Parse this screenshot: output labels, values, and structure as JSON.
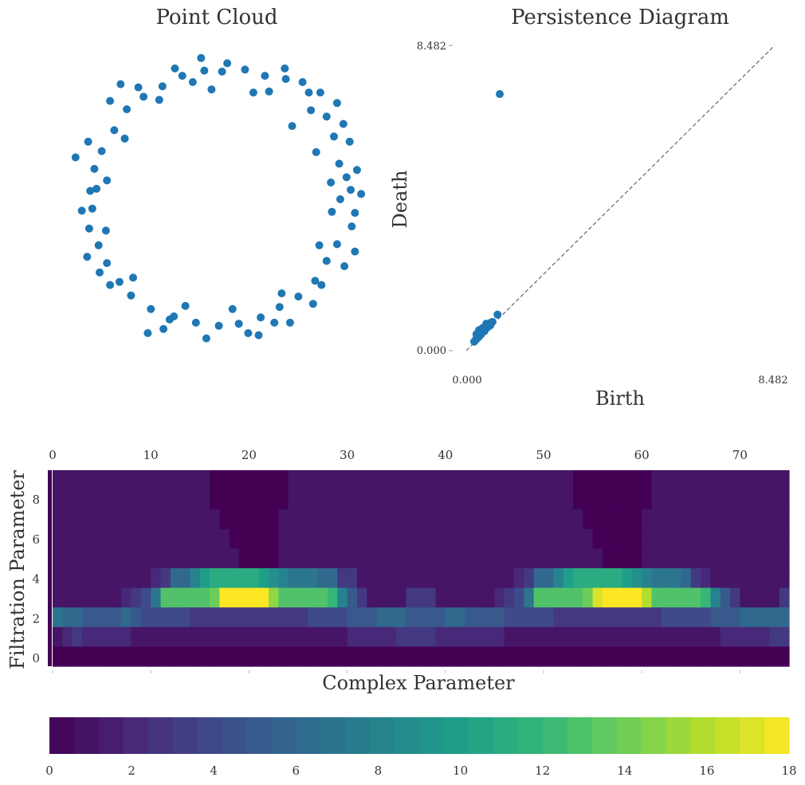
{
  "chart_data": [
    {
      "type": "scatter",
      "title": "Point Cloud",
      "xlabel": "",
      "ylabel": "",
      "xlim": [
        -1.6,
        1.6
      ],
      "ylim": [
        -1.6,
        1.6
      ],
      "grid": false,
      "color": "#1f77b4",
      "series": [
        {
          "points": [
            [
              1.18,
              0.0
            ],
            [
              1.32,
              -0.13
            ],
            [
              1.24,
              0.21
            ],
            [
              1.17,
              0.34
            ],
            [
              1.27,
              0.55
            ],
            [
              1.12,
              0.6
            ],
            [
              1.05,
              0.79
            ],
            [
              0.9,
              0.85
            ],
            [
              0.99,
              1.02
            ],
            [
              0.82,
              1.12
            ],
            [
              0.66,
              1.15
            ],
            [
              0.46,
              1.18
            ],
            [
              0.27,
              1.24
            ],
            [
              0.05,
              1.22
            ],
            [
              -0.12,
              1.23
            ],
            [
              -0.33,
              1.18
            ],
            [
              -0.52,
              1.08
            ],
            [
              -0.7,
              0.98
            ],
            [
              -0.86,
              0.86
            ],
            [
              -0.98,
              0.66
            ],
            [
              -1.1,
              0.46
            ],
            [
              -1.17,
              0.29
            ],
            [
              -1.21,
              0.08
            ],
            [
              -1.19,
              -0.09
            ],
            [
              -1.22,
              -0.28
            ],
            [
              -1.13,
              -0.44
            ],
            [
              -1.05,
              -0.61
            ],
            [
              -0.93,
              -0.79
            ],
            [
              -0.82,
              -0.92
            ],
            [
              -0.63,
              -1.05
            ],
            [
              -0.41,
              -1.12
            ],
            [
              -0.2,
              -1.18
            ],
            [
              0.02,
              -1.21
            ],
            [
              0.21,
              -1.19
            ],
            [
              0.42,
              -1.13
            ],
            [
              0.6,
              -1.03
            ],
            [
              0.78,
              -0.93
            ],
            [
              0.94,
              -0.78
            ],
            [
              1.05,
              -0.59
            ],
            [
              1.15,
              -0.43
            ],
            [
              1.29,
              -0.26
            ],
            [
              1.28,
              0.09
            ],
            [
              1.34,
              0.28
            ],
            [
              1.21,
              0.72
            ],
            [
              0.5,
              1.03
            ],
            [
              -0.23,
              1.12
            ],
            [
              -0.75,
              1.07
            ],
            [
              -1.23,
              0.55
            ],
            [
              -1.29,
              -0.11
            ],
            [
              -1.02,
              -0.82
            ],
            [
              -0.51,
              -1.24
            ],
            [
              0.3,
              -1.28
            ],
            [
              0.92,
              -1.0
            ],
            [
              1.22,
              -0.64
            ],
            [
              0.65,
              1.25
            ],
            [
              -0.4,
              1.25
            ],
            [
              -1.02,
              0.94
            ],
            [
              -1.12,
              -0.7
            ],
            [
              -0.1,
              -1.33
            ],
            [
              0.7,
              -1.18
            ],
            [
              1.09,
              0.16
            ],
            [
              1.1,
              -0.12
            ],
            [
              0.95,
              0.45
            ],
            [
              0.72,
              0.7
            ],
            [
              0.35,
              1.02
            ],
            [
              -0.05,
              1.05
            ],
            [
              -0.55,
              0.95
            ],
            [
              -0.88,
              0.58
            ],
            [
              -1.05,
              0.18
            ],
            [
              -1.06,
              -0.3
            ],
            [
              -0.8,
              -0.75
            ],
            [
              -0.3,
              -1.02
            ],
            [
              0.15,
              -1.05
            ],
            [
              0.62,
              -0.9
            ],
            [
              0.98,
              -0.44
            ],
            [
              1.38,
              0.05
            ],
            [
              -1.35,
              0.4
            ],
            [
              0.4,
              -1.3
            ],
            [
              -0.66,
              -1.28
            ],
            [
              1.32,
              -0.5
            ],
            [
              -0.15,
              1.35
            ],
            [
              0.88,
              1.02
            ],
            [
              -0.92,
              1.1
            ],
            [
              1.0,
              -0.82
            ],
            [
              -1.24,
              -0.55
            ],
            [
              0.1,
              1.3
            ],
            [
              1.15,
              0.92
            ],
            [
              -0.45,
              -1.15
            ],
            [
              0.55,
              -1.18
            ],
            [
              -1.15,
              0.1
            ]
          ]
        }
      ]
    },
    {
      "type": "scatter",
      "title": "Persistence Diagram",
      "xlabel": "Birth",
      "ylabel": "Death",
      "xlim": [
        0.0,
        8.482
      ],
      "ylim": [
        0.0,
        8.482
      ],
      "xtick_labels": [
        "0.000",
        "8.482"
      ],
      "ytick_labels": [
        "0.000",
        "8.482"
      ],
      "diagonal": "y = x (dashed)",
      "color": "#1f77b4",
      "series": [
        {
          "points": [
            [
              0.92,
              7.13
            ],
            [
              0.86,
              1.0
            ],
            [
              0.72,
              0.8
            ],
            [
              0.66,
              0.7
            ],
            [
              0.6,
              0.66
            ],
            [
              0.55,
              0.62
            ],
            [
              0.5,
              0.54
            ],
            [
              0.46,
              0.52
            ],
            [
              0.42,
              0.47
            ],
            [
              0.38,
              0.42
            ],
            [
              0.34,
              0.38
            ],
            [
              0.3,
              0.34
            ],
            [
              0.26,
              0.3
            ],
            [
              0.22,
              0.25
            ],
            [
              0.55,
              0.75
            ],
            [
              0.45,
              0.63
            ],
            [
              0.35,
              0.57
            ],
            [
              0.28,
              0.46
            ],
            [
              0.62,
              0.7
            ],
            [
              0.48,
              0.58
            ],
            [
              0.4,
              0.5
            ],
            [
              0.33,
              0.45
            ],
            [
              0.29,
              0.38
            ],
            [
              0.57,
              0.65
            ],
            [
              0.68,
              0.78
            ]
          ]
        }
      ]
    },
    {
      "type": "heatmap",
      "title": "",
      "xlabel": "Complex Parameter",
      "ylabel": "Filtration Parameter",
      "x_ticks": [
        0,
        10,
        20,
        30,
        40,
        50,
        60,
        70
      ],
      "y_ticks": [
        0,
        2,
        4,
        6,
        8
      ],
      "x_range": [
        0,
        75
      ],
      "n_cols": 75,
      "n_rows": 10,
      "row_heights": [
        1,
        1,
        1,
        1,
        1,
        1,
        1,
        1,
        2
      ],
      "colormap": "viridis",
      "colorbar_range": [
        0,
        18
      ],
      "colorbar_ticks": [
        0,
        2,
        4,
        6,
        8,
        10,
        12,
        14,
        16,
        18
      ],
      "rows_top_to_bottom": [
        [
          1,
          1,
          1,
          1,
          1,
          1,
          1,
          1,
          1,
          1,
          1,
          1,
          1,
          1,
          1,
          1,
          0,
          0,
          0,
          0,
          0,
          0,
          0,
          0,
          1,
          1,
          1,
          1,
          1,
          1,
          1,
          1,
          1,
          1,
          1,
          1,
          1,
          1,
          1,
          1,
          1,
          1,
          1,
          1,
          1,
          1,
          1,
          1,
          1,
          1,
          1,
          1,
          1,
          0,
          0,
          0,
          0,
          0,
          0,
          0,
          0,
          1,
          1,
          1,
          1,
          1,
          1,
          1,
          1,
          1,
          1,
          1,
          1,
          1,
          1
        ],
        [
          1,
          1,
          1,
          1,
          1,
          1,
          1,
          1,
          1,
          1,
          1,
          1,
          1,
          1,
          1,
          1,
          1,
          0,
          0,
          0,
          0,
          0,
          0,
          1,
          1,
          1,
          1,
          1,
          1,
          1,
          1,
          1,
          1,
          1,
          1,
          1,
          1,
          1,
          1,
          1,
          1,
          1,
          1,
          1,
          1,
          1,
          1,
          1,
          1,
          1,
          1,
          1,
          1,
          1,
          0,
          0,
          0,
          0,
          0,
          0,
          1,
          1,
          1,
          1,
          1,
          1,
          1,
          1,
          1,
          1,
          1,
          1,
          1,
          1,
          1
        ],
        [
          1,
          1,
          1,
          1,
          1,
          1,
          1,
          1,
          1,
          1,
          1,
          1,
          1,
          1,
          1,
          1,
          1,
          1,
          0,
          0,
          0,
          0,
          0,
          1,
          1,
          1,
          1,
          1,
          1,
          1,
          1,
          1,
          1,
          1,
          1,
          1,
          1,
          1,
          1,
          1,
          1,
          1,
          1,
          1,
          1,
          1,
          1,
          1,
          1,
          1,
          1,
          1,
          1,
          1,
          1,
          0,
          0,
          0,
          0,
          0,
          1,
          1,
          1,
          1,
          1,
          1,
          1,
          1,
          1,
          1,
          1,
          1,
          1,
          1,
          1
        ],
        [
          1,
          1,
          1,
          1,
          1,
          1,
          1,
          1,
          1,
          1,
          1,
          1,
          1,
          1,
          1,
          1,
          1,
          1,
          1,
          0,
          0,
          0,
          0,
          1,
          1,
          1,
          1,
          1,
          1,
          1,
          1,
          1,
          1,
          1,
          1,
          1,
          1,
          1,
          1,
          1,
          1,
          1,
          1,
          1,
          1,
          1,
          1,
          1,
          1,
          1,
          1,
          1,
          1,
          1,
          1,
          1,
          0,
          0,
          0,
          0,
          1,
          1,
          1,
          1,
          1,
          1,
          1,
          1,
          1,
          1,
          1,
          1,
          1,
          1,
          1
        ],
        [
          1,
          1,
          1,
          1,
          1,
          1,
          1,
          1,
          1,
          1,
          2,
          3,
          6,
          6,
          8,
          10,
          11,
          11,
          11,
          11,
          11,
          10,
          9,
          8,
          7,
          7,
          7,
          6,
          6,
          3,
          3,
          1,
          1,
          1,
          1,
          1,
          1,
          1,
          1,
          1,
          1,
          1,
          1,
          1,
          1,
          1,
          1,
          2,
          3,
          6,
          6,
          8,
          10,
          11,
          11,
          11,
          11,
          11,
          10,
          9,
          8,
          7,
          7,
          7,
          6,
          3,
          2,
          1,
          1,
          1,
          1,
          1,
          1,
          1,
          1
        ],
        [
          1,
          1,
          1,
          1,
          1,
          1,
          1,
          2,
          3,
          4,
          7,
          13,
          13,
          13,
          13,
          13,
          14,
          18,
          18,
          18,
          18,
          18,
          15,
          13,
          13,
          13,
          13,
          13,
          12,
          8,
          5,
          3,
          1,
          1,
          1,
          1,
          3,
          3,
          3,
          1,
          1,
          1,
          1,
          1,
          1,
          2,
          3,
          4,
          7,
          13,
          13,
          13,
          13,
          13,
          14,
          17,
          18,
          18,
          18,
          18,
          16,
          13,
          13,
          13,
          13,
          13,
          12,
          8,
          5,
          3,
          1,
          1,
          1,
          1,
          3
        ],
        [
          7,
          6,
          6,
          5,
          5,
          5,
          5,
          6,
          5,
          4,
          4,
          4,
          4,
          4,
          3,
          3,
          3,
          3,
          3,
          3,
          3,
          3,
          3,
          3,
          3,
          3,
          4,
          4,
          4,
          4,
          5,
          5,
          5,
          6,
          6,
          6,
          5,
          5,
          5,
          5,
          6,
          6,
          5,
          5,
          5,
          5,
          4,
          4,
          4,
          4,
          4,
          3,
          3,
          3,
          3,
          3,
          3,
          3,
          3,
          3,
          3,
          3,
          4,
          4,
          4,
          4,
          4,
          5,
          5,
          5,
          6,
          6,
          6,
          6,
          6
        ],
        [
          1,
          2,
          3,
          2,
          2,
          2,
          2,
          2,
          1,
          1,
          1,
          1,
          1,
          1,
          1,
          1,
          1,
          1,
          1,
          1,
          1,
          1,
          1,
          1,
          1,
          1,
          1,
          1,
          1,
          1,
          2,
          2,
          2,
          2,
          2,
          3,
          3,
          3,
          3,
          2,
          2,
          2,
          2,
          2,
          2,
          2,
          1,
          1,
          1,
          1,
          1,
          1,
          1,
          1,
          1,
          1,
          1,
          1,
          1,
          1,
          1,
          1,
          1,
          1,
          1,
          1,
          1,
          1,
          2,
          2,
          2,
          2,
          2,
          3,
          3
        ],
        [
          0,
          0,
          0,
          0,
          0,
          0,
          0,
          0,
          0,
          0,
          0,
          0,
          0,
          0,
          0,
          0,
          0,
          0,
          0,
          0,
          0,
          0,
          0,
          0,
          0,
          0,
          0,
          0,
          0,
          0,
          0,
          0,
          0,
          0,
          0,
          0,
          0,
          0,
          0,
          0,
          0,
          0,
          0,
          0,
          0,
          0,
          0,
          0,
          0,
          0,
          0,
          0,
          0,
          0,
          0,
          0,
          0,
          0,
          0,
          0,
          0,
          0,
          0,
          0,
          0,
          0,
          0,
          0,
          0,
          0,
          0,
          0,
          0,
          0,
          0
        ]
      ]
    }
  ]
}
